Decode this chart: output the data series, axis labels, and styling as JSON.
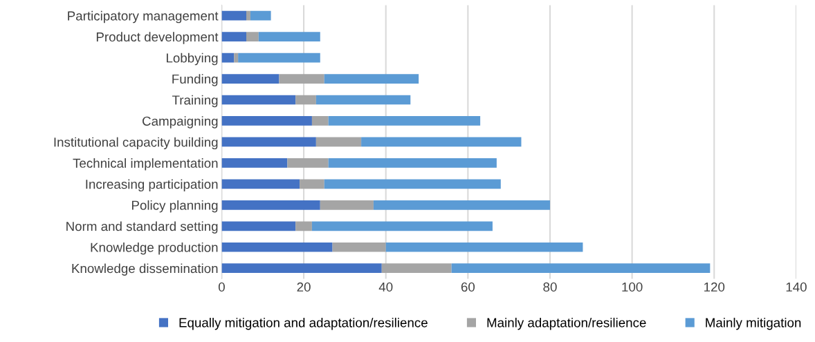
{
  "chart_data": {
    "type": "bar",
    "orientation": "horizontal",
    "stacked": true,
    "categories": [
      "Participatory management",
      "Product development",
      "Lobbying",
      "Funding",
      "Training",
      "Campaigning",
      "Institutional capacity building",
      "Technical implementation",
      "Increasing participation",
      "Policy planning",
      "Norm and standard setting",
      "Knowledge production",
      "Knowledge dissemination"
    ],
    "series": [
      {
        "name": "Equally mitigation and adaptation/resilience",
        "color": "#4472c4",
        "values": [
          6,
          6,
          3,
          14,
          18,
          22,
          23,
          16,
          19,
          24,
          18,
          27,
          39
        ]
      },
      {
        "name": "Mainly adaptation/resilience",
        "color": "#a5a5a5",
        "values": [
          1,
          3,
          1,
          11,
          5,
          4,
          11,
          10,
          6,
          13,
          4,
          13,
          17
        ]
      },
      {
        "name": "Mainly mitigation",
        "color": "#5b9bd5",
        "values": [
          5,
          15,
          20,
          23,
          23,
          37,
          39,
          41,
          43,
          43,
          44,
          48,
          63
        ]
      }
    ],
    "xlim": [
      0,
      140
    ],
    "xticks": [
      0,
      20,
      40,
      60,
      80,
      100,
      120,
      140
    ],
    "grid": "x",
    "legend": "bottom"
  }
}
